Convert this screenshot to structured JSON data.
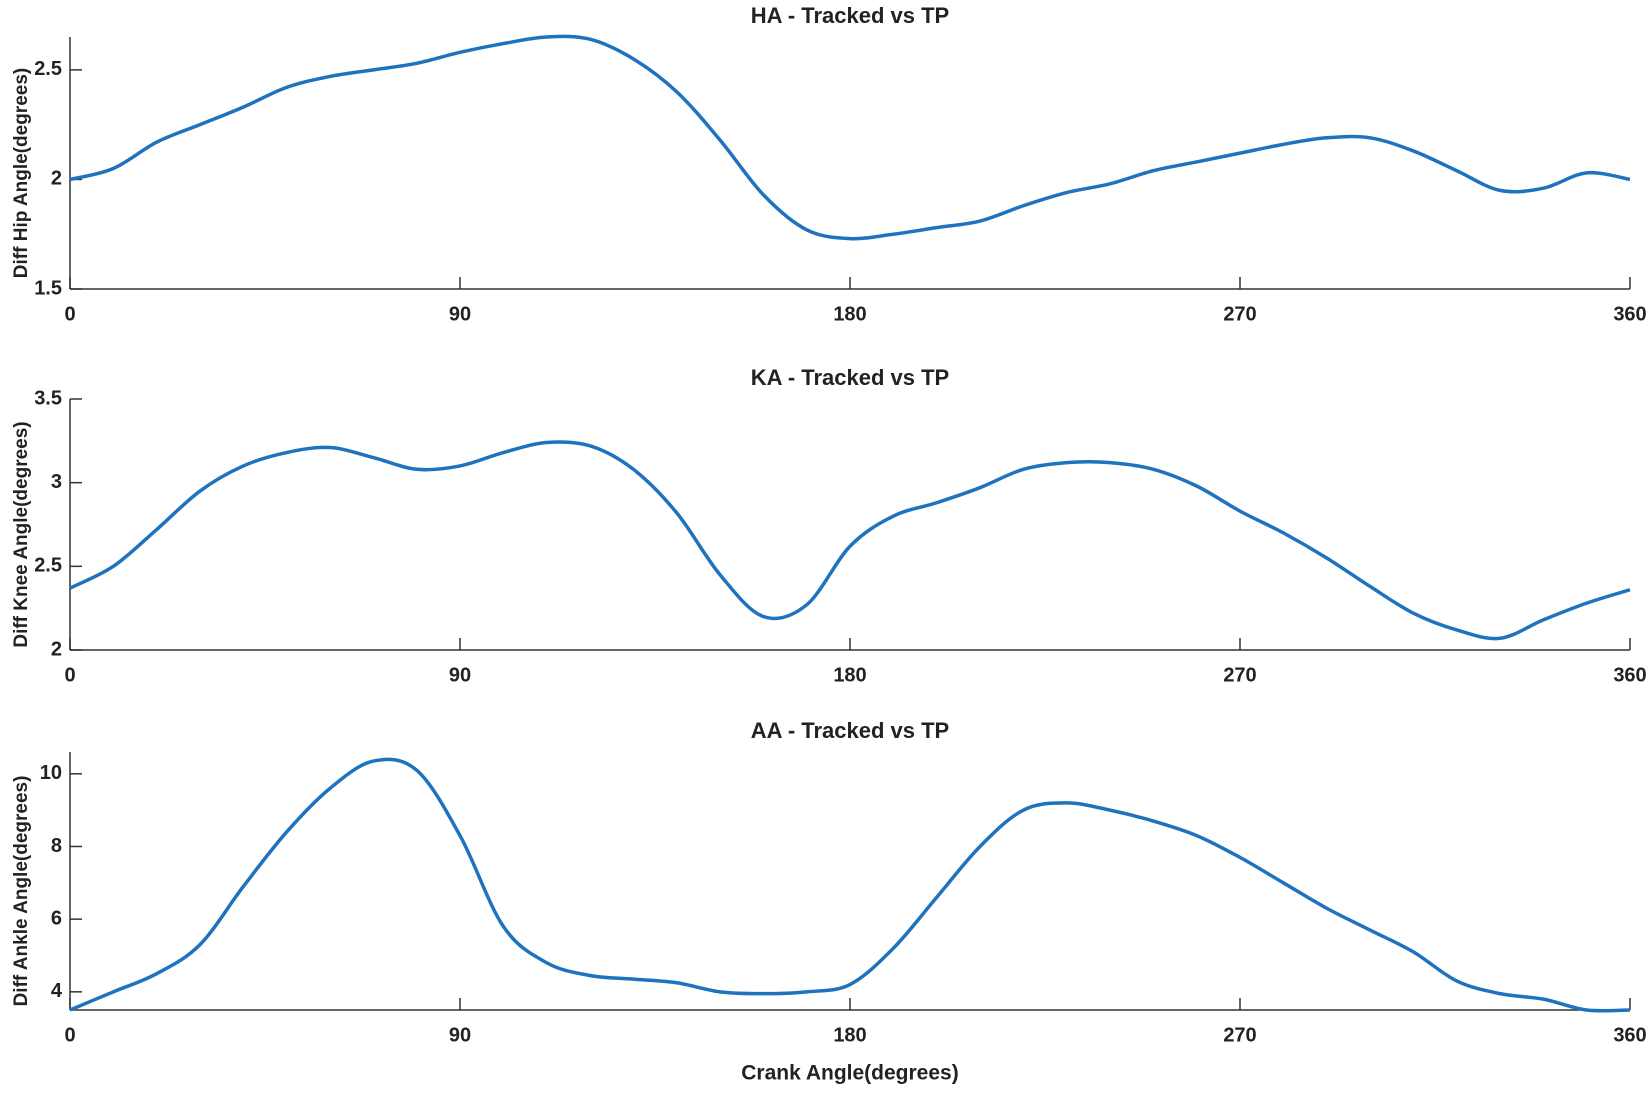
{
  "chart_data": [
    {
      "type": "line",
      "title": "HA - Tracked vs TP",
      "y_label": "Diff Hip Angle(degrees)",
      "x": [
        0,
        10,
        20,
        30,
        40,
        50,
        60,
        70,
        80,
        90,
        100,
        110,
        120,
        130,
        140,
        150,
        160,
        170,
        180,
        190,
        200,
        210,
        220,
        230,
        240,
        250,
        260,
        270,
        280,
        290,
        300,
        310,
        320,
        330,
        340,
        350,
        360
      ],
      "series": [
        {
          "color": "#1f72bd",
          "values": [
            2.0,
            2.05,
            2.17,
            2.25,
            2.33,
            2.42,
            2.47,
            2.5,
            2.53,
            2.58,
            2.62,
            2.65,
            2.64,
            2.55,
            2.4,
            2.18,
            1.93,
            1.77,
            1.73,
            1.75,
            1.78,
            1.81,
            1.88,
            1.94,
            1.98,
            2.04,
            2.08,
            2.12,
            2.16,
            2.19,
            2.19,
            2.13,
            2.04,
            1.95,
            1.96,
            2.03,
            2.0
          ]
        }
      ],
      "xlim": [
        0,
        360
      ],
      "xticks": [
        0,
        90,
        180,
        270,
        360
      ],
      "ylim": [
        1.5,
        2.65
      ],
      "yticks": [
        1.5,
        2,
        2.5
      ]
    },
    {
      "type": "line",
      "title": "KA - Tracked vs TP",
      "y_label": "Diff Knee Angle(degrees)",
      "x": [
        0,
        10,
        20,
        30,
        40,
        50,
        60,
        70,
        80,
        90,
        100,
        110,
        120,
        130,
        140,
        150,
        160,
        170,
        180,
        190,
        200,
        210,
        220,
        230,
        240,
        250,
        260,
        270,
        280,
        290,
        300,
        310,
        320,
        330,
        340,
        350,
        360
      ],
      "series": [
        {
          "color": "#1f72bd",
          "values": [
            2.37,
            2.5,
            2.72,
            2.95,
            3.1,
            3.18,
            3.21,
            3.15,
            3.08,
            3.1,
            3.18,
            3.24,
            3.22,
            3.08,
            2.82,
            2.45,
            2.2,
            2.27,
            2.62,
            2.8,
            2.88,
            2.97,
            3.08,
            3.12,
            3.12,
            3.08,
            2.98,
            2.83,
            2.7,
            2.55,
            2.38,
            2.22,
            2.12,
            2.07,
            2.18,
            2.28,
            2.36
          ]
        }
      ],
      "xlim": [
        0,
        360
      ],
      "xticks": [
        0,
        90,
        180,
        270,
        360
      ],
      "ylim": [
        2,
        3.5
      ],
      "yticks": [
        2,
        2.5,
        3,
        3.5
      ]
    },
    {
      "type": "line",
      "title": "AA - Tracked vs TP",
      "y_label": "Diff Ankle Angle(degrees)",
      "x_label": "Crank Angle(degrees)",
      "x": [
        0,
        10,
        20,
        30,
        40,
        50,
        60,
        70,
        80,
        90,
        100,
        110,
        120,
        130,
        140,
        150,
        160,
        170,
        180,
        190,
        200,
        210,
        220,
        230,
        240,
        250,
        260,
        270,
        280,
        290,
        300,
        310,
        320,
        330,
        340,
        350,
        360
      ],
      "series": [
        {
          "color": "#1f72bd",
          "values": [
            3.5,
            4.0,
            4.5,
            5.3,
            6.9,
            8.4,
            9.6,
            10.35,
            10.1,
            8.3,
            5.8,
            4.8,
            4.45,
            4.35,
            4.25,
            4.0,
            3.95,
            4.0,
            4.2,
            5.2,
            6.6,
            8.0,
            9.0,
            9.2,
            9.0,
            8.7,
            8.3,
            7.7,
            7.0,
            6.3,
            5.7,
            5.1,
            4.3,
            3.95,
            3.8,
            3.5,
            3.5
          ]
        }
      ],
      "xlim": [
        0,
        360
      ],
      "xticks": [
        0,
        90,
        180,
        270,
        360
      ],
      "ylim": [
        3.5,
        10.6
      ],
      "yticks": [
        4,
        6,
        8,
        10
      ]
    }
  ]
}
